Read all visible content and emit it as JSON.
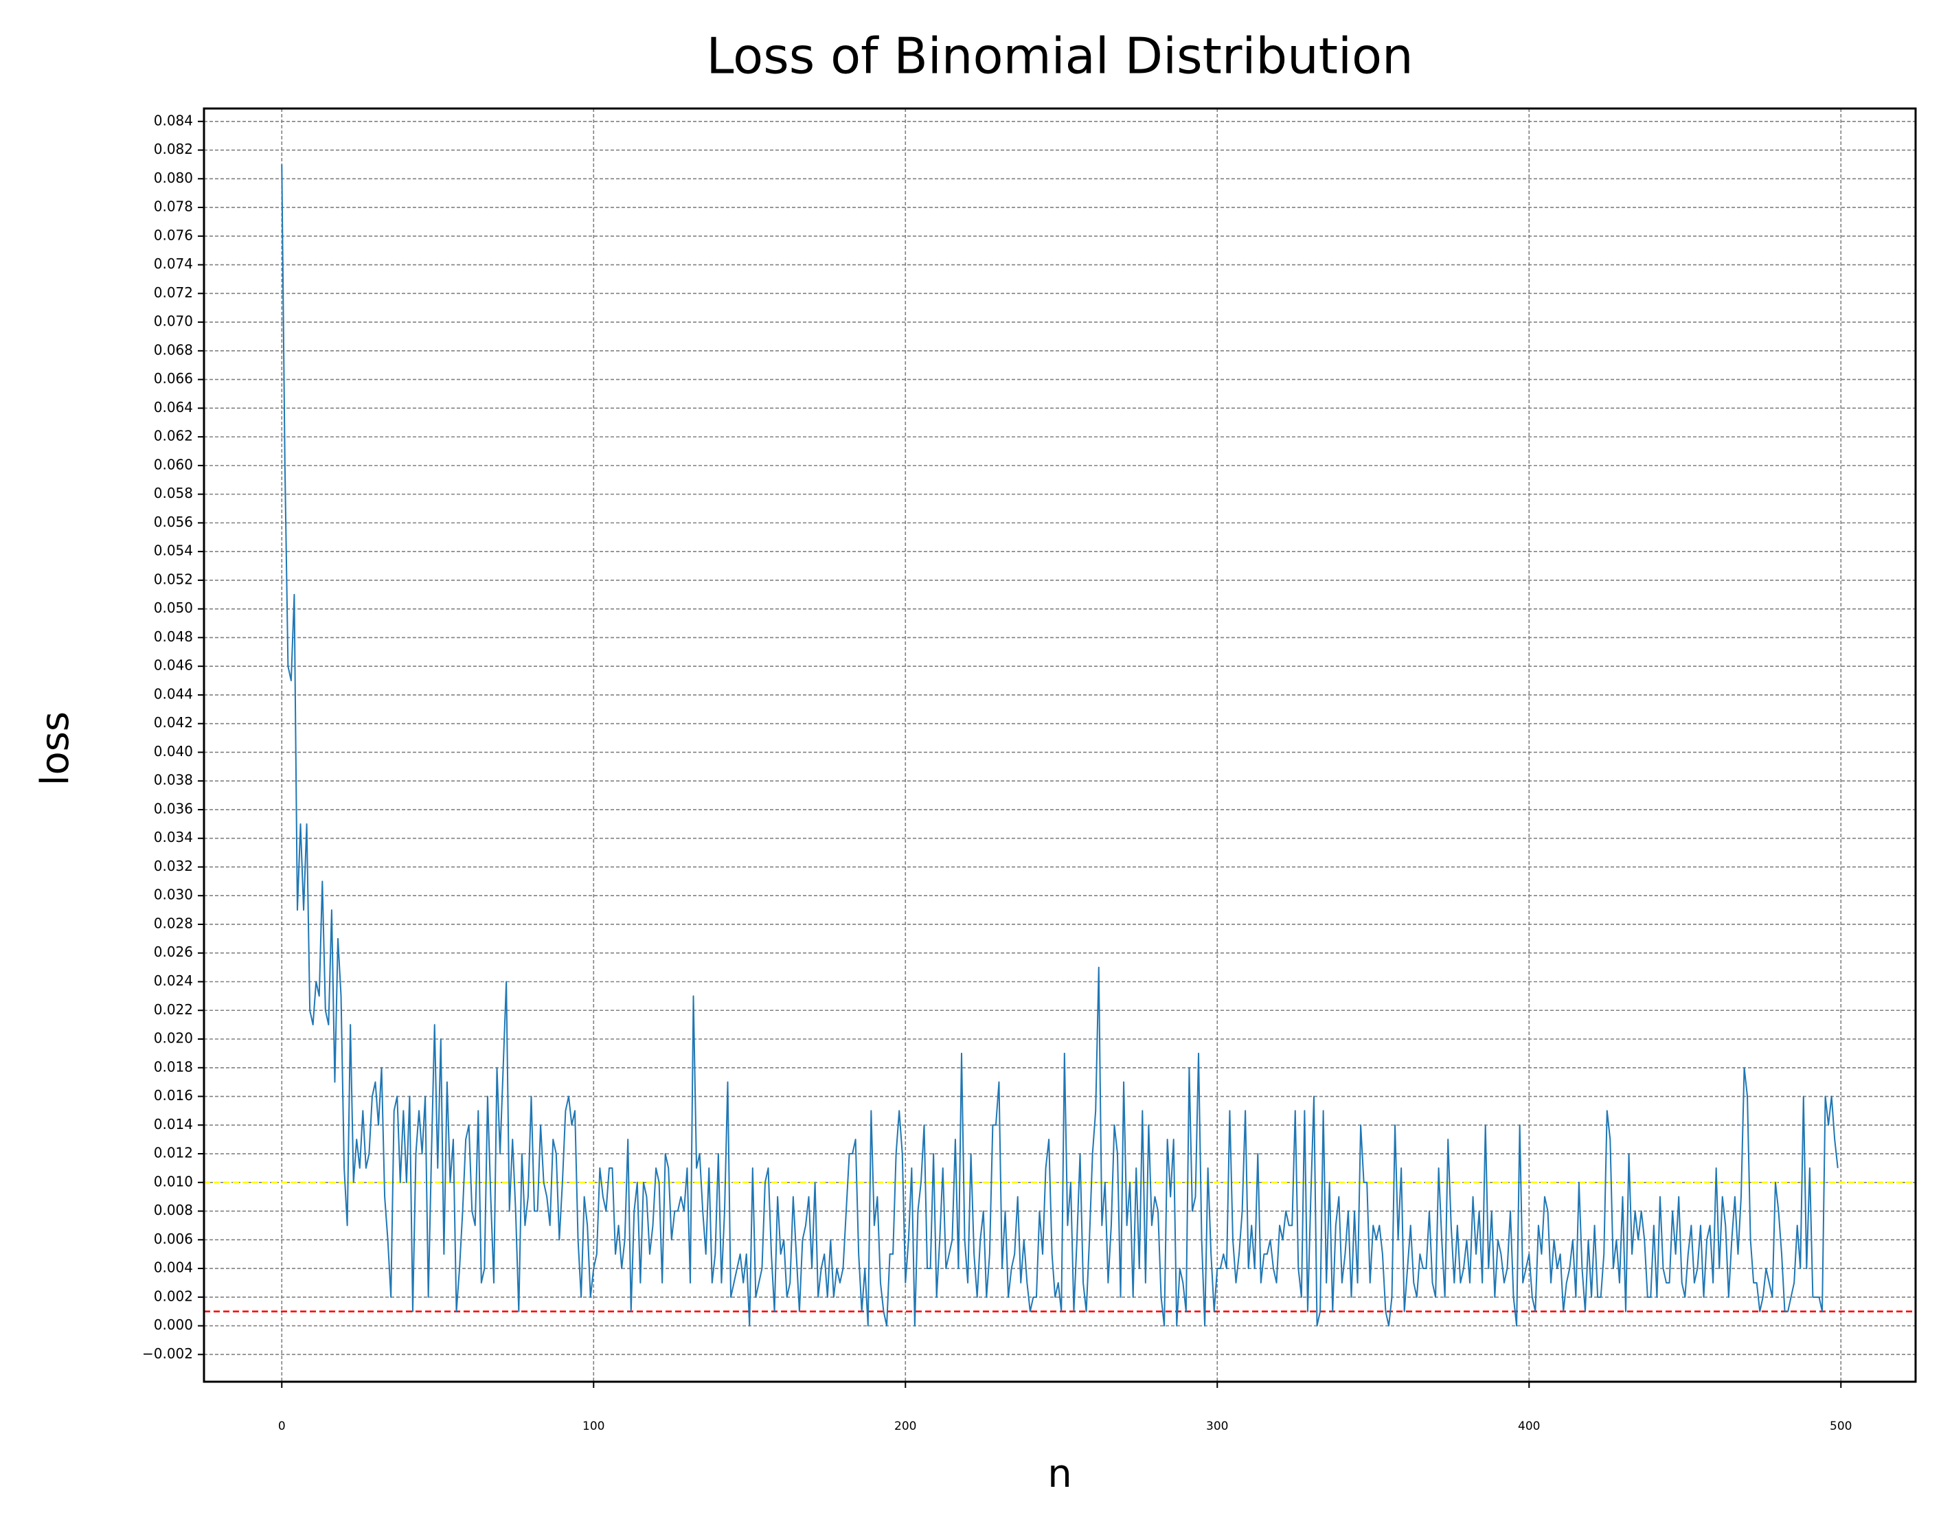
{
  "chart_data": {
    "type": "line",
    "title": "Loss of Binomial Distribution",
    "x_label": "n",
    "y_label": "loss",
    "xlim": [
      -24.95,
      523.95
    ],
    "ylim": [
      -0.0039,
      0.0849
    ],
    "xticks": [
      0,
      100,
      200,
      300,
      400,
      500
    ],
    "yticks": [
      {
        "value": -0.002,
        "label": "−0.002"
      },
      {
        "value": 0.0,
        "label": "0.000"
      },
      {
        "value": 0.002,
        "label": "0.002"
      },
      {
        "value": 0.004,
        "label": "0.004"
      },
      {
        "value": 0.006,
        "label": "0.006"
      },
      {
        "value": 0.008,
        "label": "0.008"
      },
      {
        "value": 0.01,
        "label": "0.010"
      },
      {
        "value": 0.012,
        "label": "0.012"
      },
      {
        "value": 0.014,
        "label": "0.014"
      },
      {
        "value": 0.016,
        "label": "0.016"
      },
      {
        "value": 0.018,
        "label": "0.018"
      },
      {
        "value": 0.02,
        "label": "0.020"
      },
      {
        "value": 0.022,
        "label": "0.022"
      },
      {
        "value": 0.024,
        "label": "0.024"
      },
      {
        "value": 0.026,
        "label": "0.026"
      },
      {
        "value": 0.028,
        "label": "0.028"
      },
      {
        "value": 0.03,
        "label": "0.030"
      },
      {
        "value": 0.032,
        "label": "0.032"
      },
      {
        "value": 0.034,
        "label": "0.034"
      },
      {
        "value": 0.036,
        "label": "0.036"
      },
      {
        "value": 0.038,
        "label": "0.038"
      },
      {
        "value": 0.04,
        "label": "0.040"
      },
      {
        "value": 0.042,
        "label": "0.042"
      },
      {
        "value": 0.044,
        "label": "0.044"
      },
      {
        "value": 0.046,
        "label": "0.046"
      },
      {
        "value": 0.048,
        "label": "0.048"
      },
      {
        "value": 0.05,
        "label": "0.050"
      },
      {
        "value": 0.052,
        "label": "0.052"
      },
      {
        "value": 0.054,
        "label": "0.054"
      },
      {
        "value": 0.056,
        "label": "0.056"
      },
      {
        "value": 0.058,
        "label": "0.058"
      },
      {
        "value": 0.06,
        "label": "0.060"
      },
      {
        "value": 0.062,
        "label": "0.062"
      },
      {
        "value": 0.064,
        "label": "0.064"
      },
      {
        "value": 0.066,
        "label": "0.066"
      },
      {
        "value": 0.068,
        "label": "0.068"
      },
      {
        "value": 0.07,
        "label": "0.070"
      },
      {
        "value": 0.072,
        "label": "0.072"
      },
      {
        "value": 0.074,
        "label": "0.074"
      },
      {
        "value": 0.076,
        "label": "0.076"
      },
      {
        "value": 0.078,
        "label": "0.078"
      },
      {
        "value": 0.08,
        "label": "0.080"
      },
      {
        "value": 0.082,
        "label": "0.082"
      },
      {
        "value": 0.084,
        "label": "0.084"
      }
    ],
    "grid": true,
    "hlines": [
      {
        "value": 0.01,
        "color": "#ffff00"
      },
      {
        "value": 0.001,
        "color": "#ff0000"
      }
    ],
    "x": [
      0,
      1,
      2,
      3,
      4,
      5,
      6,
      7,
      8,
      9,
      10,
      11,
      12,
      13,
      14,
      15,
      16,
      17,
      18,
      19,
      20,
      21,
      22,
      23,
      24,
      25,
      26,
      27,
      28,
      29,
      30,
      31,
      32,
      33,
      34,
      35,
      36,
      37,
      38,
      39,
      40,
      41,
      42,
      43,
      44,
      45,
      46,
      47,
      48,
      49,
      50,
      51,
      52,
      53,
      54,
      55,
      56,
      57,
      58,
      59,
      60,
      61,
      62,
      63,
      64,
      65,
      66,
      67,
      68,
      69,
      70,
      71,
      72,
      73,
      74,
      75,
      76,
      77,
      78,
      79,
      80,
      81,
      82,
      83,
      84,
      85,
      86,
      87,
      88,
      89,
      90,
      91,
      92,
      93,
      94,
      95,
      96,
      97,
      98,
      99,
      100,
      101,
      102,
      103,
      104,
      105,
      106,
      107,
      108,
      109,
      110,
      111,
      112,
      113,
      114,
      115,
      116,
      117,
      118,
      119,
      120,
      121,
      122,
      123,
      124,
      125,
      126,
      127,
      128,
      129,
      130,
      131,
      132,
      133,
      134,
      135,
      136,
      137,
      138,
      139,
      140,
      141,
      142,
      143,
      144,
      145,
      146,
      147,
      148,
      149,
      150,
      151,
      152,
      153,
      154,
      155,
      156,
      157,
      158,
      159,
      160,
      161,
      162,
      163,
      164,
      165,
      166,
      167,
      168,
      169,
      170,
      171,
      172,
      173,
      174,
      175,
      176,
      177,
      178,
      179,
      180,
      181,
      182,
      183,
      184,
      185,
      186,
      187,
      188,
      189,
      190,
      191,
      192,
      193,
      194,
      195,
      196,
      197,
      198,
      199,
      200,
      201,
      202,
      203,
      204,
      205,
      206,
      207,
      208,
      209,
      210,
      211,
      212,
      213,
      214,
      215,
      216,
      217,
      218,
      219,
      220,
      221,
      222,
      223,
      224,
      225,
      226,
      227,
      228,
      229,
      230,
      231,
      232,
      233,
      234,
      235,
      236,
      237,
      238,
      239,
      240,
      241,
      242,
      243,
      244,
      245,
      246,
      247,
      248,
      249,
      250,
      251,
      252,
      253,
      254,
      255,
      256,
      257,
      258,
      259,
      260,
      261,
      262,
      263,
      264,
      265,
      266,
      267,
      268,
      269,
      270,
      271,
      272,
      273,
      274,
      275,
      276,
      277,
      278,
      279,
      280,
      281,
      282,
      283,
      284,
      285,
      286,
      287,
      288,
      289,
      290,
      291,
      292,
      293,
      294,
      295,
      296,
      297,
      298,
      299,
      300,
      301,
      302,
      303,
      304,
      305,
      306,
      307,
      308,
      309,
      310,
      311,
      312,
      313,
      314,
      315,
      316,
      317,
      318,
      319,
      320,
      321,
      322,
      323,
      324,
      325,
      326,
      327,
      328,
      329,
      330,
      331,
      332,
      333,
      334,
      335,
      336,
      337,
      338,
      339,
      340,
      341,
      342,
      343,
      344,
      345,
      346,
      347,
      348,
      349,
      350,
      351,
      352,
      353,
      354,
      355,
      356,
      357,
      358,
      359,
      360,
      361,
      362,
      363,
      364,
      365,
      366,
      367,
      368,
      369,
      370,
      371,
      372,
      373,
      374,
      375,
      376,
      377,
      378,
      379,
      380,
      381,
      382,
      383,
      384,
      385,
      386,
      387,
      388,
      389,
      390,
      391,
      392,
      393,
      394,
      395,
      396,
      397,
      398,
      399,
      400,
      401,
      402,
      403,
      404,
      405,
      406,
      407,
      408,
      409,
      410,
      411,
      412,
      413,
      414,
      415,
      416,
      417,
      418,
      419,
      420,
      421,
      422,
      423,
      424,
      425,
      426,
      427,
      428,
      429,
      430,
      431,
      432,
      433,
      434,
      435,
      436,
      437,
      438,
      439,
      440,
      441,
      442,
      443,
      444,
      445,
      446,
      447,
      448,
      449,
      450,
      451,
      452,
      453,
      454,
      455,
      456,
      457,
      458,
      459,
      460,
      461,
      462,
      463,
      464,
      465,
      466,
      467,
      468,
      469,
      470,
      471,
      472,
      473,
      474,
      475,
      476,
      477,
      478,
      479,
      480,
      481,
      482,
      483,
      484,
      485,
      486,
      487,
      488,
      489,
      490,
      491,
      492,
      493,
      494,
      495,
      496,
      497,
      498,
      499
    ],
    "series": [
      {
        "color": "#1f77b4",
        "values": [
          0.081,
          0.06,
          0.046,
          0.045,
          0.051,
          0.029,
          0.035,
          0.029,
          0.035,
          0.022,
          0.021,
          0.024,
          0.023,
          0.031,
          0.022,
          0.021,
          0.029,
          0.017,
          0.027,
          0.023,
          0.011,
          0.007,
          0.021,
          0.01,
          0.013,
          0.011,
          0.015,
          0.011,
          0.012,
          0.016,
          0.017,
          0.014,
          0.018,
          0.009,
          0.006,
          0.002,
          0.015,
          0.016,
          0.01,
          0.015,
          0.01,
          0.016,
          0.001,
          0.012,
          0.015,
          0.012,
          0.016,
          0.002,
          0.012,
          0.021,
          0.011,
          0.02,
          0.005,
          0.017,
          0.01,
          0.013,
          0.001,
          0.004,
          0.008,
          0.013,
          0.014,
          0.008,
          0.007,
          0.015,
          0.003,
          0.004,
          0.016,
          0.009,
          0.003,
          0.018,
          0.012,
          0.018,
          0.024,
          0.008,
          0.013,
          0.008,
          0.001,
          0.012,
          0.007,
          0.009,
          0.016,
          0.008,
          0.008,
          0.014,
          0.01,
          0.009,
          0.007,
          0.013,
          0.012,
          0.006,
          0.01,
          0.015,
          0.016,
          0.014,
          0.015,
          0.006,
          0.002,
          0.009,
          0.007,
          0.002,
          0.004,
          0.005,
          0.011,
          0.009,
          0.008,
          0.011,
          0.011,
          0.005,
          0.007,
          0.004,
          0.006,
          0.013,
          0.001,
          0.008,
          0.01,
          0.003,
          0.01,
          0.009,
          0.005,
          0.007,
          0.011,
          0.01,
          0.003,
          0.012,
          0.011,
          0.006,
          0.008,
          0.008,
          0.009,
          0.008,
          0.011,
          0.003,
          0.023,
          0.011,
          0.012,
          0.008,
          0.005,
          0.011,
          0.003,
          0.005,
          0.012,
          0.003,
          0.008,
          0.017,
          0.002,
          0.003,
          0.004,
          0.005,
          0.003,
          0.005,
          0.0,
          0.011,
          0.002,
          0.003,
          0.004,
          0.01,
          0.011,
          0.005,
          0.001,
          0.009,
          0.005,
          0.006,
          0.002,
          0.003,
          0.009,
          0.005,
          0.001,
          0.006,
          0.007,
          0.009,
          0.004,
          0.01,
          0.002,
          0.004,
          0.005,
          0.002,
          0.006,
          0.002,
          0.004,
          0.003,
          0.004,
          0.008,
          0.012,
          0.012,
          0.013,
          0.005,
          0.001,
          0.004,
          0.0,
          0.015,
          0.007,
          0.009,
          0.003,
          0.001,
          0.0,
          0.005,
          0.005,
          0.012,
          0.015,
          0.012,
          0.003,
          0.006,
          0.011,
          0.0,
          0.008,
          0.01,
          0.014,
          0.004,
          0.004,
          0.012,
          0.002,
          0.006,
          0.011,
          0.004,
          0.005,
          0.006,
          0.013,
          0.004,
          0.019,
          0.006,
          0.003,
          0.012,
          0.005,
          0.002,
          0.006,
          0.008,
          0.002,
          0.005,
          0.014,
          0.014,
          0.017,
          0.004,
          0.008,
          0.002,
          0.004,
          0.005,
          0.009,
          0.003,
          0.006,
          0.003,
          0.001,
          0.002,
          0.002,
          0.008,
          0.005,
          0.011,
          0.013,
          0.005,
          0.002,
          0.003,
          0.001,
          0.019,
          0.007,
          0.01,
          0.001,
          0.006,
          0.012,
          0.003,
          0.001,
          0.006,
          0.012,
          0.015,
          0.025,
          0.007,
          0.01,
          0.003,
          0.007,
          0.014,
          0.012,
          0.002,
          0.017,
          0.007,
          0.01,
          0.002,
          0.011,
          0.004,
          0.015,
          0.003,
          0.014,
          0.007,
          0.009,
          0.008,
          0.002,
          0.0,
          0.013,
          0.009,
          0.013,
          0.0,
          0.004,
          0.003,
          0.001,
          0.018,
          0.008,
          0.009,
          0.019,
          0.006,
          0.0,
          0.011,
          0.005,
          0.001,
          0.004,
          0.004,
          0.005,
          0.004,
          0.015,
          0.006,
          0.003,
          0.005,
          0.008,
          0.015,
          0.004,
          0.007,
          0.004,
          0.012,
          0.003,
          0.005,
          0.005,
          0.006,
          0.004,
          0.003,
          0.007,
          0.006,
          0.008,
          0.007,
          0.007,
          0.015,
          0.004,
          0.002,
          0.015,
          0.001,
          0.009,
          0.016,
          0.0,
          0.001,
          0.015,
          0.003,
          0.01,
          0.001,
          0.007,
          0.009,
          0.003,
          0.005,
          0.008,
          0.002,
          0.008,
          0.003,
          0.014,
          0.01,
          0.01,
          0.003,
          0.007,
          0.006,
          0.007,
          0.005,
          0.001,
          0.0,
          0.002,
          0.014,
          0.006,
          0.011,
          0.001,
          0.004,
          0.007,
          0.003,
          0.002,
          0.005,
          0.004,
          0.004,
          0.008,
          0.003,
          0.002,
          0.011,
          0.006,
          0.002,
          0.013,
          0.007,
          0.003,
          0.007,
          0.003,
          0.004,
          0.006,
          0.003,
          0.009,
          0.005,
          0.008,
          0.003,
          0.014,
          0.004,
          0.008,
          0.002,
          0.006,
          0.005,
          0.003,
          0.004,
          0.008,
          0.002,
          0.0,
          0.014,
          0.003,
          0.004,
          0.005,
          0.002,
          0.001,
          0.007,
          0.005,
          0.009,
          0.008,
          0.003,
          0.006,
          0.004,
          0.005,
          0.001,
          0.003,
          0.004,
          0.006,
          0.002,
          0.01,
          0.004,
          0.001,
          0.006,
          0.002,
          0.007,
          0.002,
          0.002,
          0.005,
          0.015,
          0.013,
          0.004,
          0.006,
          0.003,
          0.009,
          0.001,
          0.012,
          0.005,
          0.008,
          0.006,
          0.008,
          0.006,
          0.002,
          0.002,
          0.007,
          0.002,
          0.009,
          0.004,
          0.003,
          0.003,
          0.008,
          0.005,
          0.009,
          0.003,
          0.002,
          0.005,
          0.007,
          0.003,
          0.004,
          0.007,
          0.002,
          0.006,
          0.007,
          0.003,
          0.011,
          0.004,
          0.009,
          0.007,
          0.002,
          0.006,
          0.009,
          0.005,
          0.009,
          0.018,
          0.016,
          0.006,
          0.003,
          0.003,
          0.001,
          0.002,
          0.004,
          0.003,
          0.002,
          0.01,
          0.008,
          0.005,
          0.001,
          0.001,
          0.002,
          0.003,
          0.007,
          0.004,
          0.016,
          0.004,
          0.011,
          0.002,
          0.002,
          0.002,
          0.001,
          0.016,
          0.014,
          0.016,
          0.013,
          0.011
        ]
      }
    ]
  }
}
